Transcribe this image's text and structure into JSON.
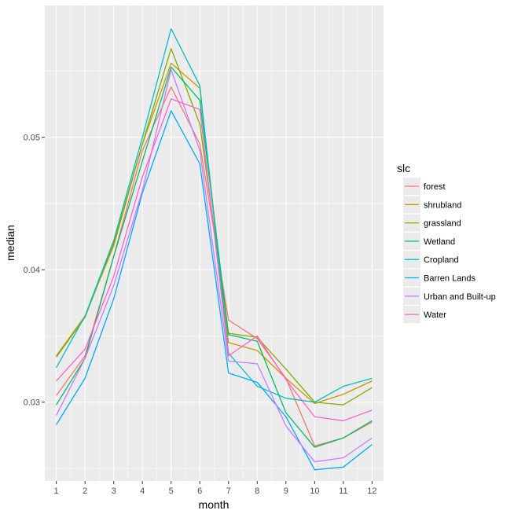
{
  "chart_data": {
    "type": "line",
    "xlabel": "month",
    "ylabel": "median",
    "x": [
      1,
      2,
      3,
      4,
      5,
      6,
      7,
      8,
      9,
      10,
      11,
      12
    ],
    "xlim": [
      0.6,
      12.4
    ],
    "ylim": [
      0.02405,
      0.05995
    ],
    "y_ticks": [
      0.03,
      0.04,
      0.05
    ],
    "y_tick_labels": [
      "0.03",
      "0.04",
      "0.05"
    ],
    "x_tick_labels": [
      "1",
      "2",
      "3",
      "4",
      "5",
      "6",
      "7",
      "8",
      "9",
      "10",
      "11",
      "12"
    ],
    "grid": true,
    "legend": {
      "title": "slc",
      "position": "right"
    },
    "series": [
      {
        "name": "forest",
        "color": "#F8766D",
        "values": [
          0.0305,
          0.0335,
          0.041,
          0.049,
          0.0538,
          0.0495,
          0.0362,
          0.0348,
          0.0318,
          0.0267,
          0.0273,
          0.0285
        ]
      },
      {
        "name": "shrubland",
        "color": "#CD9600",
        "values": [
          0.0335,
          0.0365,
          0.0418,
          0.0495,
          0.0556,
          0.0537,
          0.0345,
          0.0339,
          0.0318,
          0.0299,
          0.0306,
          0.0316
        ]
      },
      {
        "name": "grassland",
        "color": "#7CAE00",
        "values": [
          0.0334,
          0.0364,
          0.042,
          0.0495,
          0.0567,
          0.051,
          0.0352,
          0.0349,
          0.0325,
          0.03,
          0.0298,
          0.0311
        ]
      },
      {
        "name": "Wetland",
        "color": "#00BE67",
        "values": [
          0.0298,
          0.0333,
          0.041,
          0.0482,
          0.0553,
          0.0528,
          0.0351,
          0.0346,
          0.0292,
          0.0266,
          0.0273,
          0.0286
        ]
      },
      {
        "name": "Cropland",
        "color": "#00BFC4",
        "values": [
          0.0326,
          0.0365,
          0.0422,
          0.05,
          0.0582,
          0.0539,
          0.0337,
          0.0312,
          0.0303,
          0.03,
          0.0312,
          0.0318
        ]
      },
      {
        "name": "Barren Lands",
        "color": "#00A9FF",
        "values": [
          0.0283,
          0.0318,
          0.0378,
          0.0458,
          0.052,
          0.048,
          0.0322,
          0.0315,
          0.0289,
          0.0249,
          0.0251,
          0.0268
        ]
      },
      {
        "name": "Urban and Built-up",
        "color": "#C77CFF",
        "values": [
          0.029,
          0.0333,
          0.0388,
          0.046,
          0.0551,
          0.049,
          0.0331,
          0.0329,
          0.0282,
          0.0255,
          0.0258,
          0.0273
        ]
      },
      {
        "name": "Water",
        "color": "#FF61CC",
        "values": [
          0.0316,
          0.034,
          0.0395,
          0.047,
          0.0529,
          0.0521,
          0.0335,
          0.035,
          0.0317,
          0.0289,
          0.0286,
          0.0294
        ]
      }
    ]
  },
  "style": {
    "panel_background": "#EBEBEB",
    "grid_color": "#FFFFFF",
    "tick_color": "#333333"
  }
}
